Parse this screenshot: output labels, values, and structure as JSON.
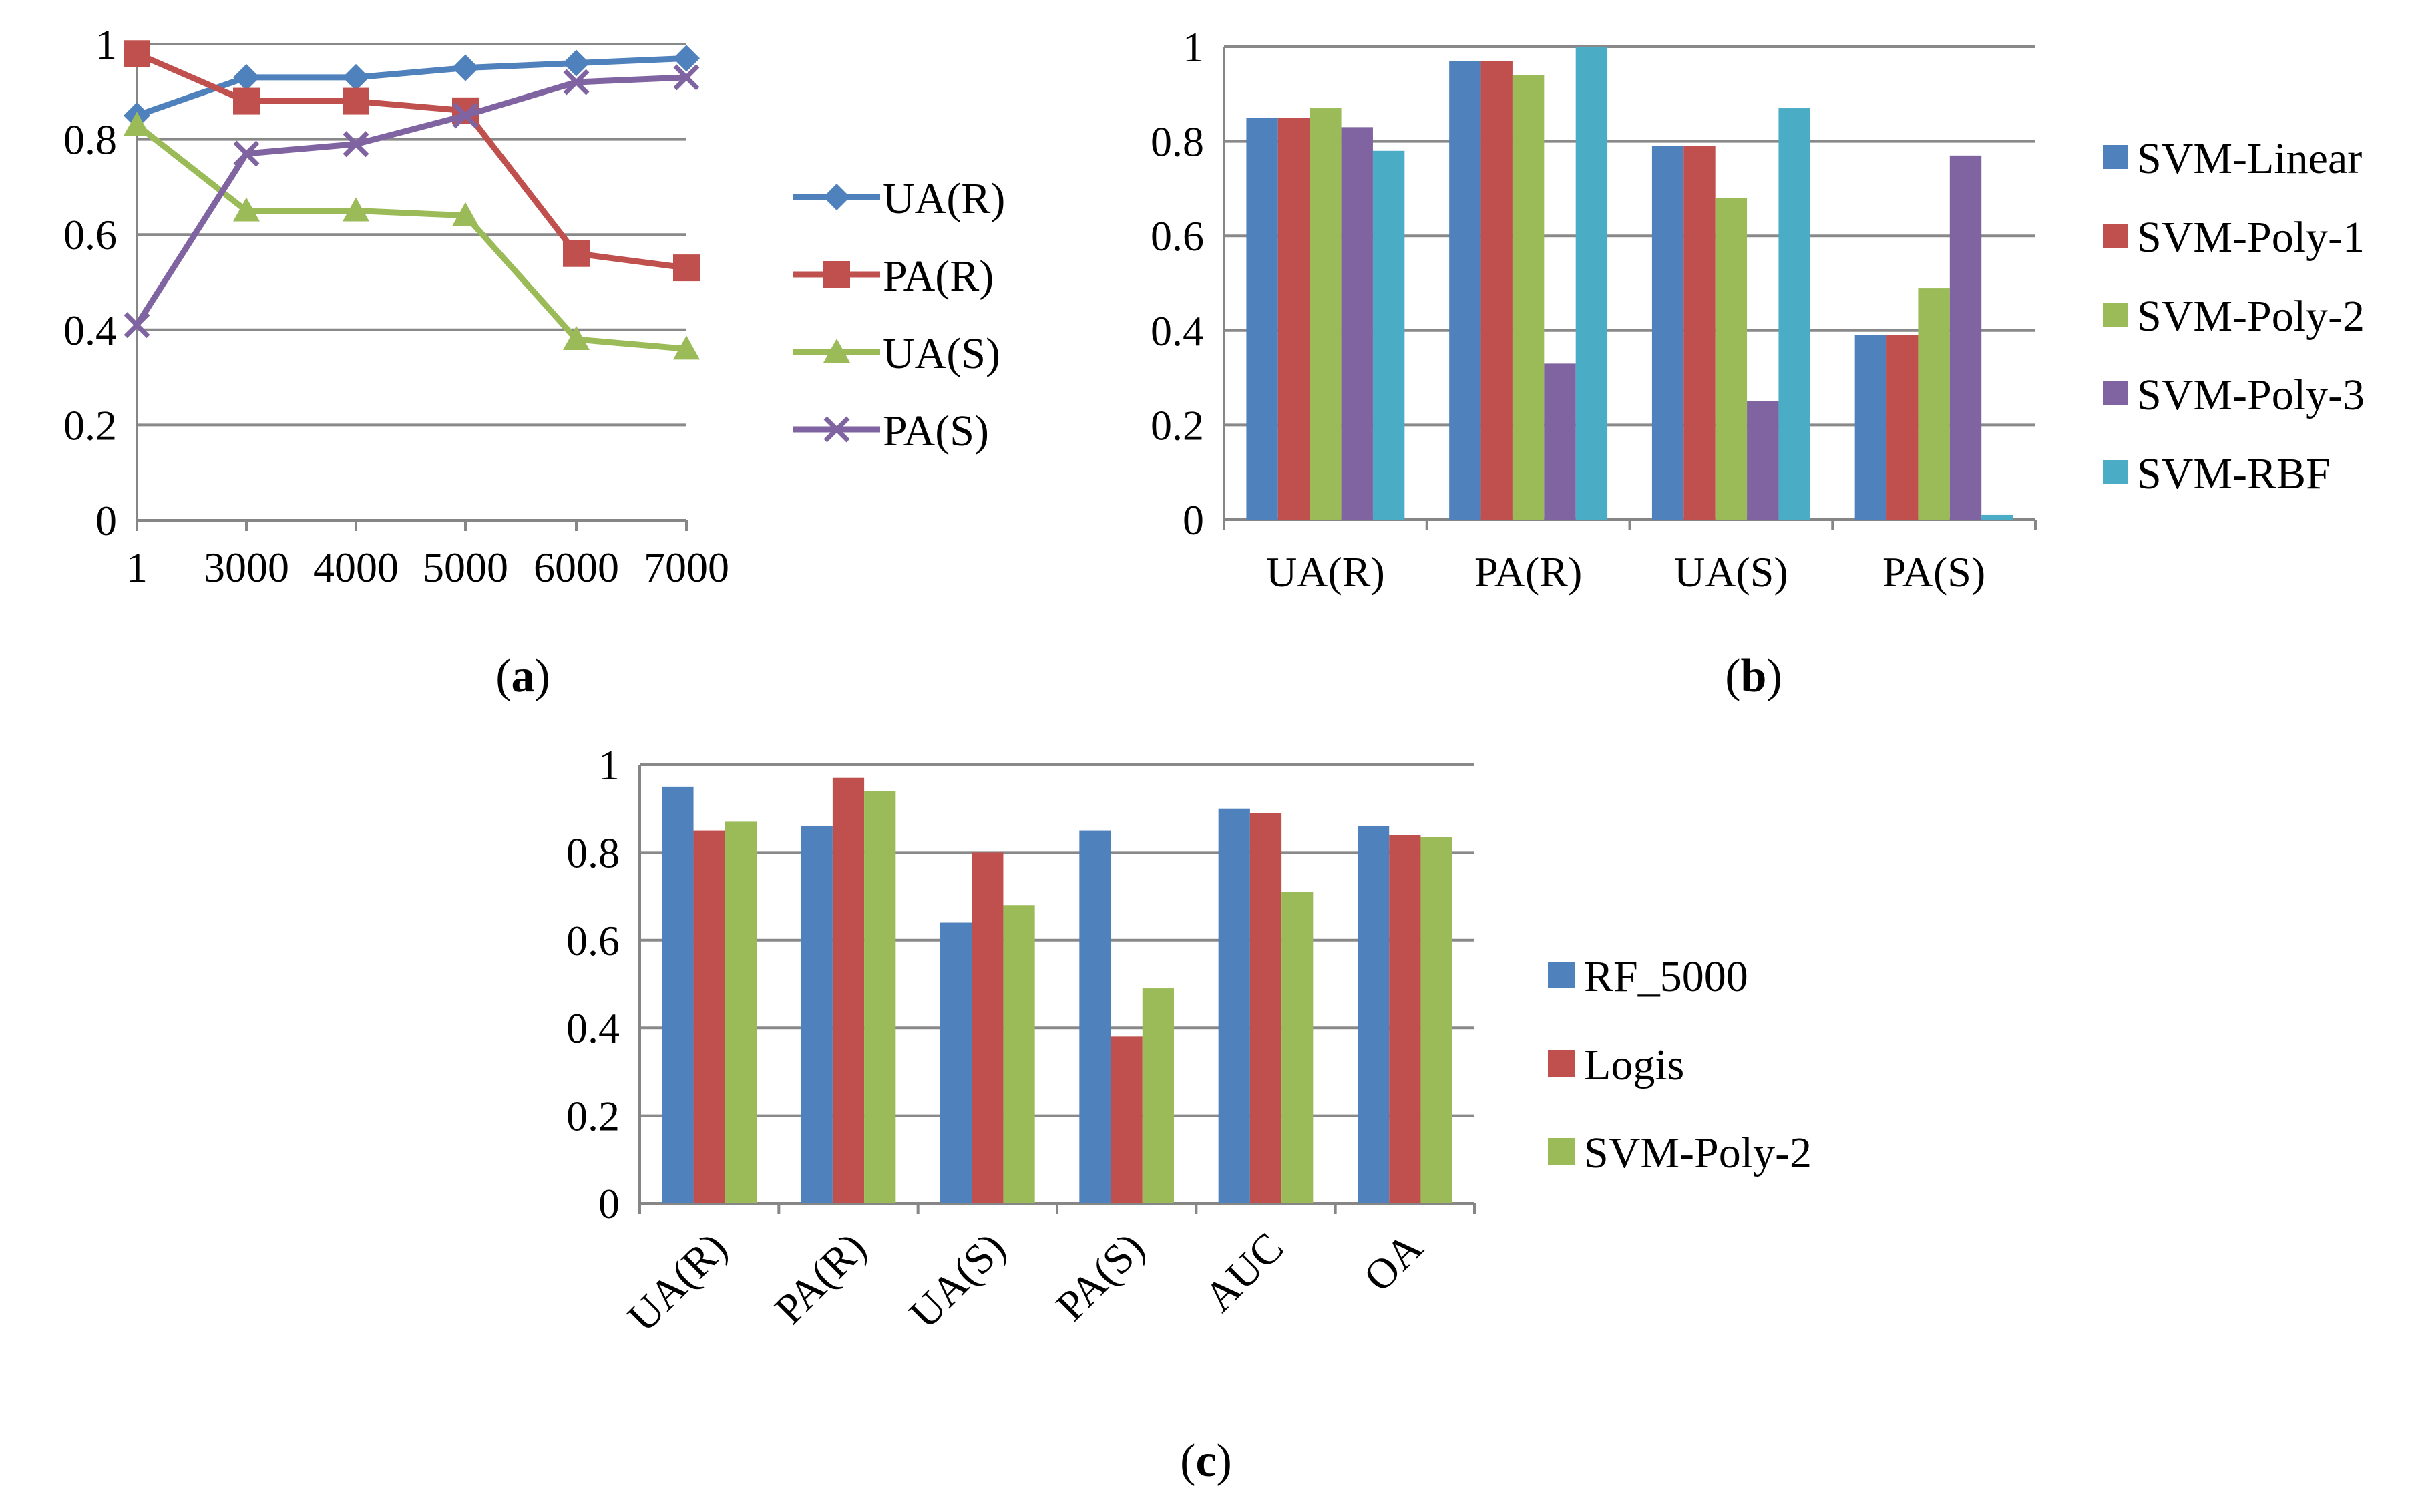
{
  "chart_data": [
    {
      "panel": "a",
      "type": "line",
      "x": [
        "1",
        "3000",
        "4000",
        "5000",
        "6000",
        "7000"
      ],
      "ylim": [
        0,
        1
      ],
      "yticks": [
        "0",
        "0.2",
        "0.4",
        "0.6",
        "0.8",
        "1"
      ],
      "legend_position": "right",
      "series": [
        {
          "name": "UA(R)",
          "color": "#4f81bd",
          "marker": "diamond",
          "values": [
            0.85,
            0.93,
            0.93,
            0.95,
            0.96,
            0.97
          ]
        },
        {
          "name": "PA(R)",
          "color": "#c0504d",
          "marker": "square",
          "values": [
            0.98,
            0.88,
            0.88,
            0.86,
            0.56,
            0.53
          ]
        },
        {
          "name": "UA(S)",
          "color": "#9bbb59",
          "marker": "triangle",
          "values": [
            0.83,
            0.65,
            0.65,
            0.64,
            0.38,
            0.36
          ]
        },
        {
          "name": "PA(S)",
          "color": "#8064a2",
          "marker": "x",
          "values": [
            0.41,
            0.77,
            0.79,
            0.85,
            0.92,
            0.93
          ]
        }
      ]
    },
    {
      "panel": "b",
      "type": "bar",
      "categories": [
        "UA(R)",
        "PA(R)",
        "UA(S)",
        "PA(S)"
      ],
      "ylim": [
        0,
        1
      ],
      "yticks": [
        "0",
        "0.2",
        "0.4",
        "0.6",
        "0.8",
        "1"
      ],
      "legend_position": "right",
      "series": [
        {
          "name": "SVM-Linear",
          "color": "#4f81bd",
          "values": [
            0.85,
            0.97,
            0.79,
            0.39
          ]
        },
        {
          "name": "SVM-Poly-1",
          "color": "#c0504d",
          "values": [
            0.85,
            0.97,
            0.79,
            0.39
          ]
        },
        {
          "name": "SVM-Poly-2",
          "color": "#9bbb59",
          "values": [
            0.87,
            0.94,
            0.68,
            0.49
          ]
        },
        {
          "name": "SVM-Poly-3",
          "color": "#8064a2",
          "values": [
            0.83,
            0.33,
            0.25,
            0.77
          ]
        },
        {
          "name": "SVM-RBF",
          "color": "#4bacc6",
          "values": [
            0.78,
            1.0,
            0.87,
            0.01
          ]
        }
      ]
    },
    {
      "panel": "c",
      "type": "bar",
      "categories": [
        "UA(R)",
        "PA(R)",
        "UA(S)",
        "PA(S)",
        "AUC",
        "OA"
      ],
      "ylim": [
        0,
        1
      ],
      "yticks": [
        "0",
        "0.2",
        "0.4",
        "0.6",
        "0.8",
        "1"
      ],
      "legend_position": "right",
      "series": [
        {
          "name": "RF_5000",
          "color": "#4f81bd",
          "values": [
            0.95,
            0.86,
            0.64,
            0.85,
            0.9,
            0.86
          ]
        },
        {
          "name": "Logis",
          "color": "#c0504d",
          "values": [
            0.85,
            0.97,
            0.8,
            0.38,
            0.89,
            0.84
          ]
        },
        {
          "name": "SVM-Poly-2",
          "color": "#9bbb59",
          "values": [
            0.87,
            0.94,
            0.68,
            0.49,
            0.71,
            0.835
          ]
        }
      ]
    }
  ],
  "panel_labels": {
    "a": {
      "open": "(",
      "letter": "a",
      "close": ")"
    },
    "b": {
      "open": "(",
      "letter": "b",
      "close": ")"
    },
    "c": {
      "open": "(",
      "letter": "c",
      "close": ")"
    }
  },
  "colors": {
    "gridline": "#898989",
    "axis": "#868686"
  }
}
